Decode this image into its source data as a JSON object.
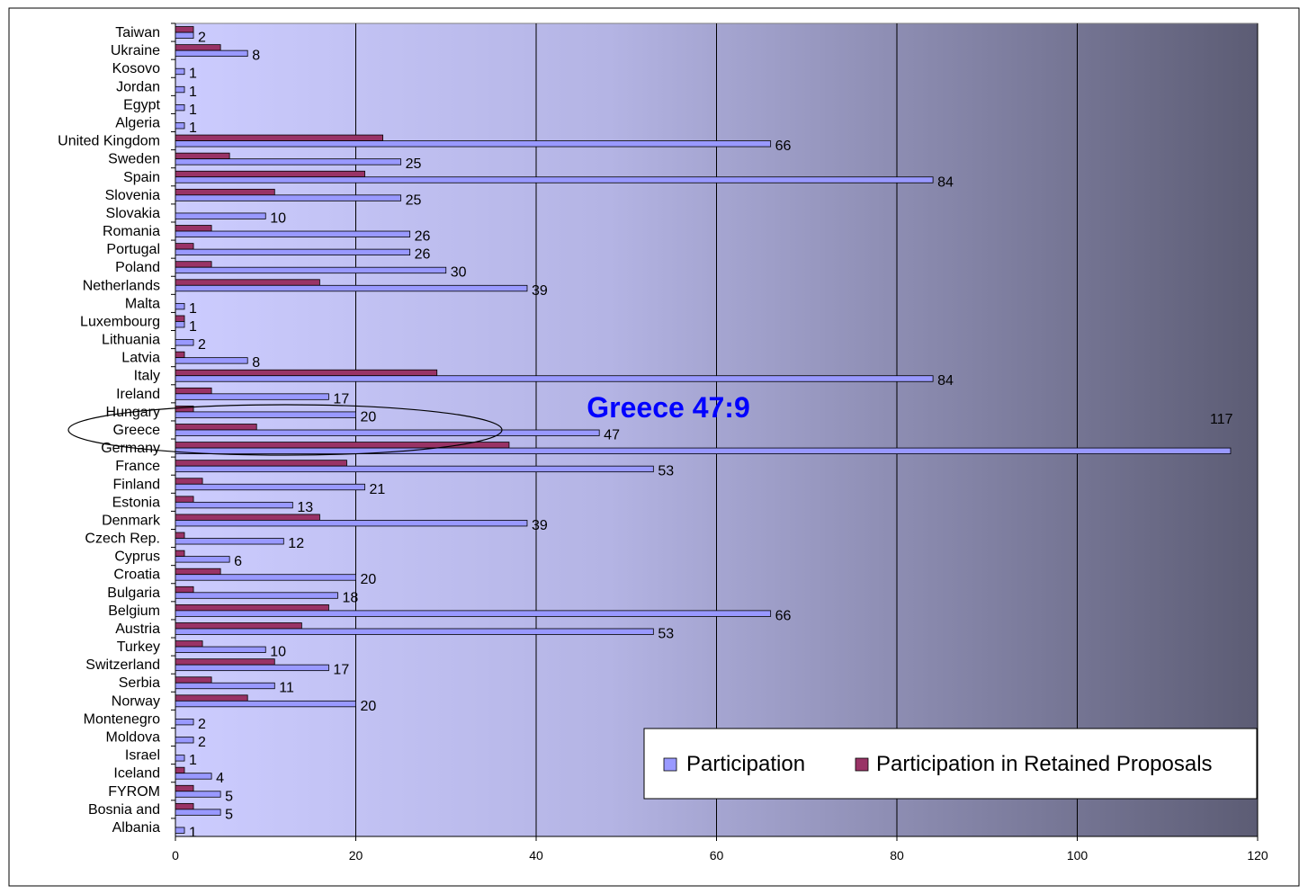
{
  "chart_data": {
    "type": "bar",
    "orientation": "horizontal",
    "title": "",
    "xlabel": "",
    "ylabel": "",
    "xlim": [
      0,
      120
    ],
    "x_ticks": [
      0,
      20,
      40,
      60,
      80,
      100,
      120
    ],
    "grid": true,
    "legend_position": "bottom-right",
    "categories": [
      "Taiwan",
      "Ukraine",
      "Kosovo",
      "Jordan",
      "Egypt",
      "Algeria",
      "United Kingdom",
      "Sweden",
      "Spain",
      "Slovenia",
      "Slovakia",
      "Romania",
      "Portugal",
      "Poland",
      "Netherlands",
      "Malta",
      "Luxembourg",
      "Lithuania",
      "Latvia",
      "Italy",
      "Ireland",
      "Hungary",
      "Greece",
      "Germany",
      "France",
      "Finland",
      "Estonia",
      "Denmark",
      "Czech Rep.",
      "Cyprus",
      "Croatia",
      "Bulgaria",
      "Belgium",
      "Austria",
      "Turkey",
      "Switzerland",
      "Serbia",
      "Norway",
      "Montenegro",
      "Moldova",
      "Israel",
      "Iceland",
      "FYROM",
      "Bosnia and",
      "Albania"
    ],
    "series": [
      {
        "name": "Participation",
        "color": "#9999ff",
        "values": [
          2,
          8,
          1,
          1,
          1,
          1,
          66,
          25,
          84,
          25,
          10,
          26,
          26,
          30,
          39,
          1,
          1,
          2,
          8,
          84,
          17,
          20,
          47,
          117,
          53,
          21,
          13,
          39,
          12,
          6,
          20,
          18,
          66,
          53,
          10,
          17,
          11,
          20,
          2,
          2,
          1,
          4,
          5,
          5,
          1
        ]
      },
      {
        "name": "Participation in Retained Proposals",
        "color": "#993366",
        "values": [
          2,
          5,
          0,
          0,
          0,
          0,
          23,
          6,
          21,
          11,
          0,
          4,
          2,
          4,
          16,
          0,
          1,
          0,
          1,
          29,
          4,
          2,
          9,
          37,
          19,
          3,
          2,
          16,
          1,
          1,
          5,
          2,
          17,
          14,
          3,
          11,
          4,
          8,
          0,
          0,
          0,
          1,
          2,
          2,
          0
        ]
      }
    ],
    "annotations": [
      {
        "text": "Greece 47:9",
        "color": "#0000ff",
        "highlight_category": "Greece"
      }
    ]
  }
}
